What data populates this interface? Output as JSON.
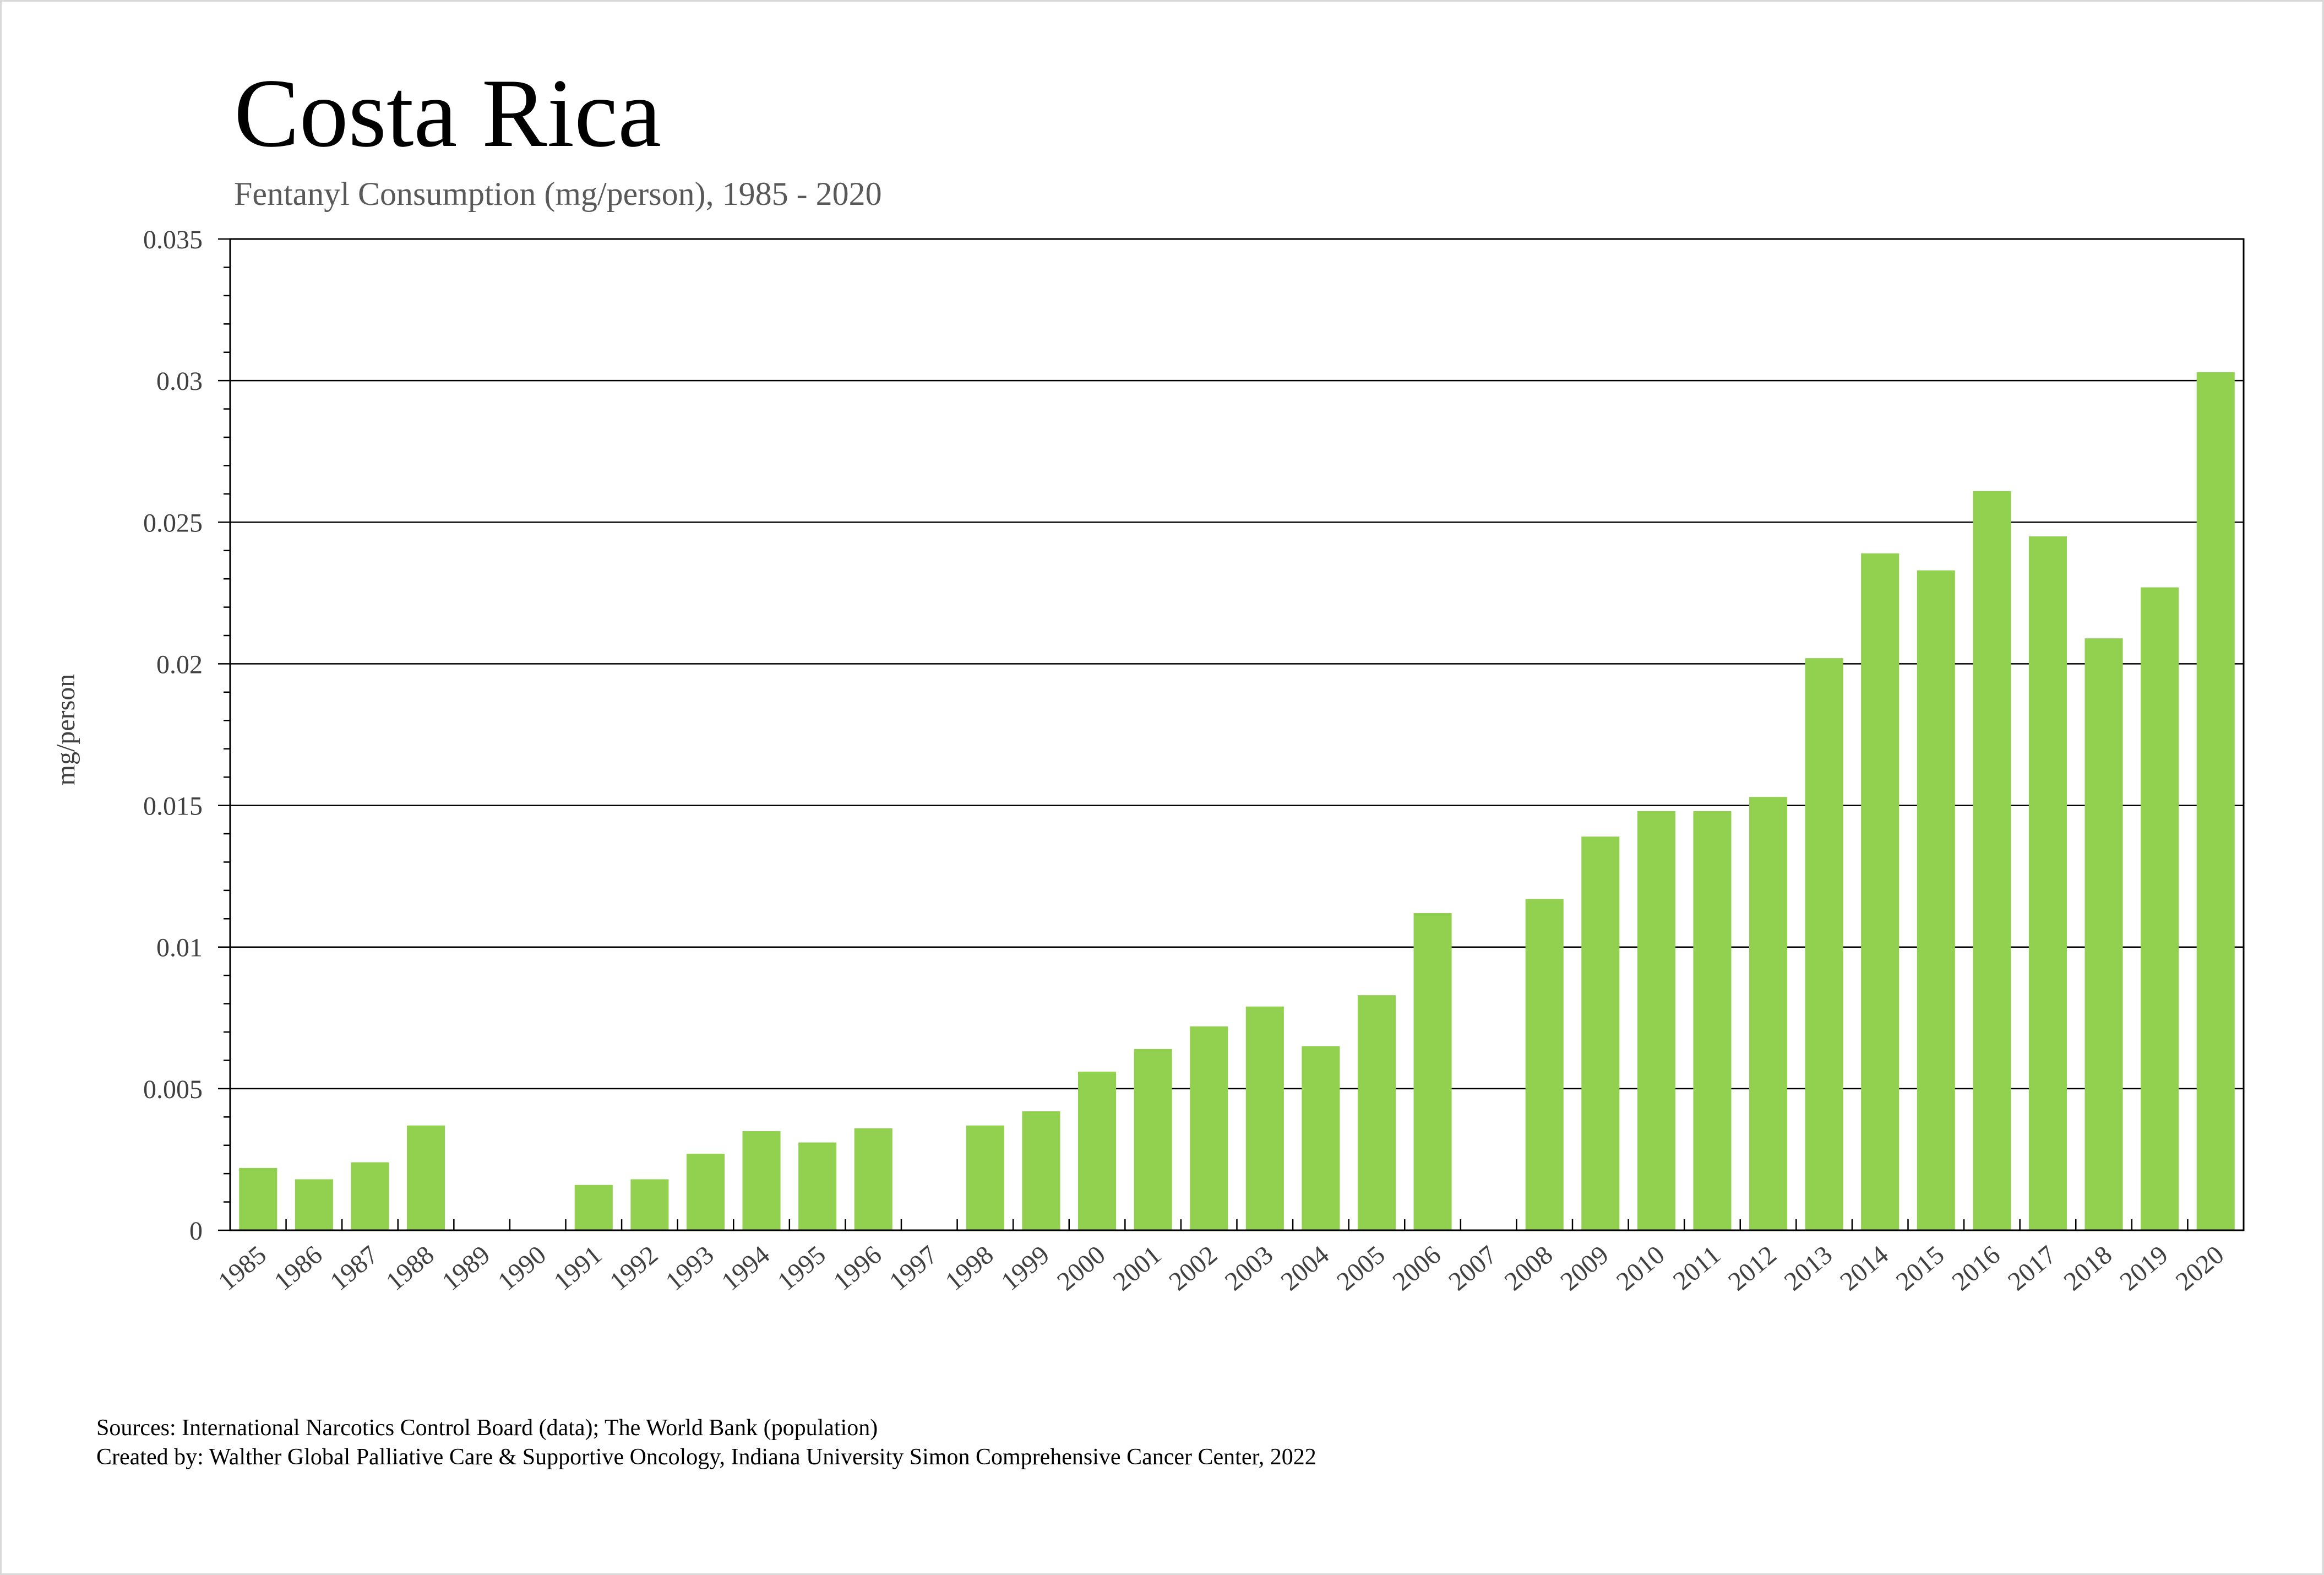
{
  "chart_data": {
    "type": "bar",
    "title": "Costa Rica",
    "subtitle": "Fentanyl Consumption (mg/person), 1985 - 2020",
    "xlabel": "",
    "ylabel": "mg/person",
    "ylim": [
      0,
      0.035
    ],
    "yticks": [
      "0",
      "0.005",
      "0.01",
      "0.015",
      "0.02",
      "0.025",
      "0.03",
      "0.035"
    ],
    "grid": true,
    "bar_color": "#92d050",
    "categories": [
      "1985",
      "1986",
      "1987",
      "1988",
      "1989",
      "1990",
      "1991",
      "1992",
      "1993",
      "1994",
      "1995",
      "1996",
      "1997",
      "1998",
      "1999",
      "2000",
      "2001",
      "2002",
      "2003",
      "2004",
      "2005",
      "2006",
      "2007",
      "2008",
      "2009",
      "2010",
      "2011",
      "2012",
      "2013",
      "2014",
      "2015",
      "2016",
      "2017",
      "2018",
      "2019",
      "2020"
    ],
    "values": [
      0.0022,
      0.0018,
      0.0024,
      0.0037,
      0,
      0,
      0.0016,
      0.0018,
      0.0027,
      0.0035,
      0.0031,
      0.0036,
      0,
      0.0037,
      0.0042,
      0.0056,
      0.0064,
      0.0072,
      0.0079,
      0.0065,
      0.0083,
      0.0112,
      0,
      0.0117,
      0.0139,
      0.0148,
      0.0148,
      0.0153,
      0.0202,
      0.0239,
      0.0233,
      0.0261,
      0.0245,
      0.0209,
      0.0227,
      0.0303
    ]
  },
  "footer": {
    "sources": "Sources: International Narcotics Control Board (data); The World Bank (population)",
    "created_by": "Created by: Walther Global Palliative Care & Supportive Oncology, Indiana University Simon Comprehensive Cancer Center, 2022"
  }
}
